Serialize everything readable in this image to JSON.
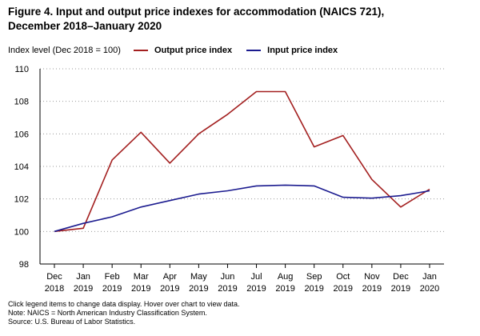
{
  "title_line1": "Figure 4. Input and output price indexes for accommodation (NAICS 721),",
  "title_line2": "December 2018–January 2020",
  "notes": [
    "Click legend items to change data display. Hover over chart to view data.",
    "Note: NAICS = North American Industry Classification System.",
    "Source: U.S. Bureau of Labor Statistics."
  ],
  "chart_data": {
    "type": "line",
    "title": "Figure 4. Input and output price indexes for accommodation (NAICS 721), December 2018–January 2020",
    "ylabel": "Index level (Dec 2018 = 100)",
    "xlabel": "",
    "ylim": [
      98,
      110
    ],
    "yticks": [
      98,
      100,
      102,
      104,
      106,
      108,
      110
    ],
    "grid": "horizontal dotted",
    "legend_position": "top",
    "categories": [
      [
        "Dec",
        "2018"
      ],
      [
        "Jan",
        "2019"
      ],
      [
        "Feb",
        "2019"
      ],
      [
        "Mar",
        "2019"
      ],
      [
        "Apr",
        "2019"
      ],
      [
        "May",
        "2019"
      ],
      [
        "Jun",
        "2019"
      ],
      [
        "Jul",
        "2019"
      ],
      [
        "Aug",
        "2019"
      ],
      [
        "Sep",
        "2019"
      ],
      [
        "Oct",
        "2019"
      ],
      [
        "Nov",
        "2019"
      ],
      [
        "Dec",
        "2019"
      ],
      [
        "Jan",
        "2020"
      ]
    ],
    "series": [
      {
        "name": "Output price index",
        "color": "#a31f1f",
        "values": [
          100.0,
          100.2,
          104.4,
          106.1,
          104.2,
          106.0,
          107.2,
          108.6,
          108.6,
          105.2,
          105.9,
          103.2,
          101.5,
          102.6
        ]
      },
      {
        "name": "Input price index",
        "color": "#1b1b8f",
        "values": [
          100.0,
          100.5,
          100.9,
          101.5,
          101.9,
          102.3,
          102.5,
          102.8,
          102.85,
          102.8,
          102.1,
          102.05,
          102.2,
          102.5
        ]
      }
    ]
  }
}
